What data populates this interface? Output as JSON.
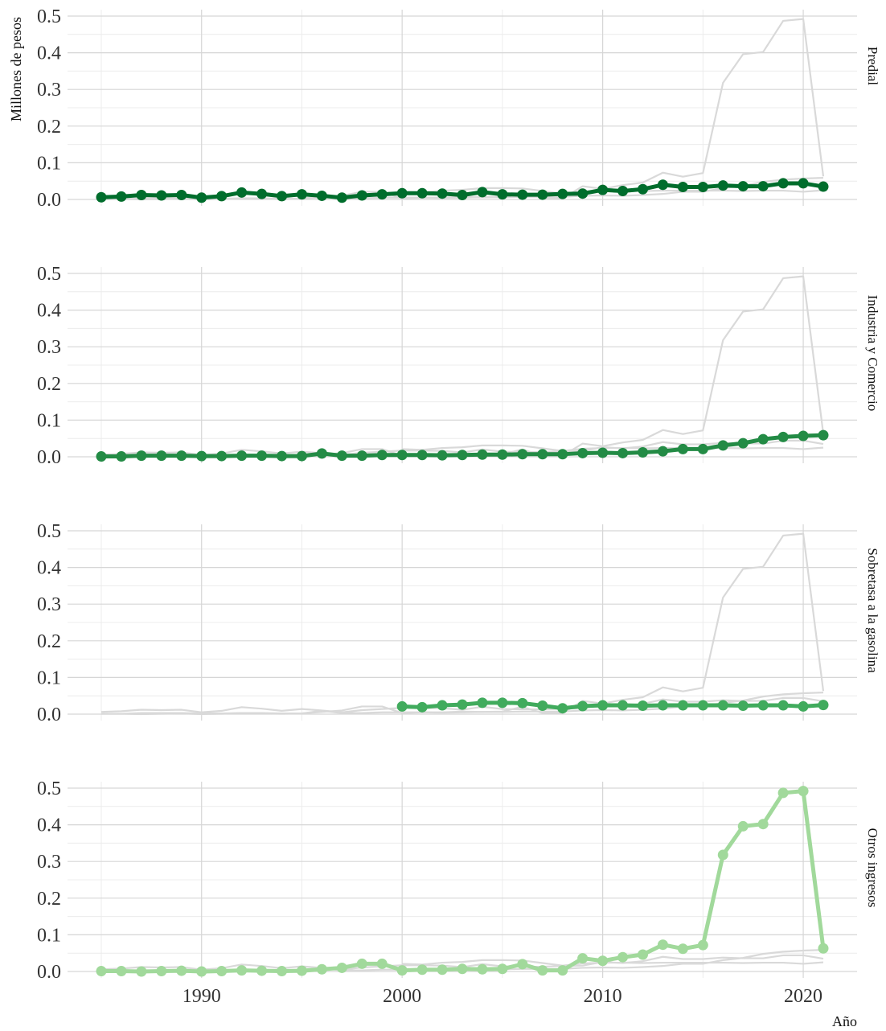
{
  "chart_data": {
    "type": "line",
    "xlabel": "Año",
    "ylabel": "Millones de pesos",
    "xlim": [
      1985,
      2021
    ],
    "ylim": [
      0,
      0.5
    ],
    "x_ticks": [
      1990,
      2000,
      2010,
      2020
    ],
    "x_tick_labels": [
      "1990",
      "2000",
      "2010",
      "2020"
    ],
    "y_ticks": [
      0,
      0.1,
      0.2,
      0.3,
      0.4,
      0.5
    ],
    "y_tick_labels": [
      "0.0",
      "0.1",
      "0.2",
      "0.3",
      "0.4",
      "0.5"
    ],
    "grid": true,
    "background_color": "#d9d9d9",
    "panels": [
      {
        "name": "Predial",
        "color": "#006d2c",
        "x": [
          1985,
          1986,
          1987,
          1988,
          1989,
          1990,
          1991,
          1992,
          1993,
          1994,
          1995,
          1996,
          1997,
          1998,
          1999,
          2000,
          2001,
          2002,
          2003,
          2004,
          2005,
          2006,
          2007,
          2008,
          2009,
          2010,
          2011,
          2012,
          2013,
          2014,
          2015,
          2016,
          2017,
          2018,
          2019,
          2020,
          2021
        ],
        "values": [
          0.006,
          0.008,
          0.012,
          0.011,
          0.012,
          0.005,
          0.009,
          0.019,
          0.015,
          0.009,
          0.014,
          0.01,
          0.005,
          0.011,
          0.014,
          0.017,
          0.017,
          0.016,
          0.012,
          0.02,
          0.014,
          0.013,
          0.013,
          0.015,
          0.016,
          0.026,
          0.023,
          0.028,
          0.04,
          0.034,
          0.034,
          0.038,
          0.036,
          0.036,
          0.044,
          0.044,
          0.035
        ]
      },
      {
        "name": "Industria y Comercio",
        "color": "#238b45",
        "x": [
          1985,
          1986,
          1987,
          1988,
          1989,
          1990,
          1991,
          1992,
          1993,
          1994,
          1995,
          1996,
          1997,
          1998,
          1999,
          2000,
          2001,
          2002,
          2003,
          2004,
          2005,
          2006,
          2007,
          2008,
          2009,
          2010,
          2011,
          2012,
          2013,
          2014,
          2015,
          2016,
          2017,
          2018,
          2019,
          2020,
          2021
        ],
        "values": [
          0.001,
          0.001,
          0.003,
          0.003,
          0.003,
          0.002,
          0.002,
          0.003,
          0.003,
          0.002,
          0.002,
          0.009,
          0.003,
          0.003,
          0.005,
          0.005,
          0.005,
          0.004,
          0.005,
          0.006,
          0.006,
          0.007,
          0.007,
          0.007,
          0.01,
          0.011,
          0.01,
          0.012,
          0.015,
          0.021,
          0.021,
          0.031,
          0.037,
          0.048,
          0.054,
          0.057,
          0.059
        ]
      },
      {
        "name": "Sobretasa a la gasolina",
        "color": "#41ab5d",
        "x": [
          2000,
          2001,
          2002,
          2003,
          2004,
          2005,
          2006,
          2007,
          2008,
          2009,
          2010,
          2011,
          2012,
          2013,
          2014,
          2015,
          2016,
          2017,
          2018,
          2019,
          2020,
          2021
        ],
        "values": [
          0.021,
          0.019,
          0.024,
          0.026,
          0.031,
          0.031,
          0.03,
          0.023,
          0.016,
          0.022,
          0.024,
          0.024,
          0.023,
          0.024,
          0.024,
          0.024,
          0.024,
          0.023,
          0.024,
          0.024,
          0.021,
          0.025
        ]
      },
      {
        "name": "Otros ingresos",
        "color": "#a1d99b",
        "x": [
          1985,
          1986,
          1987,
          1988,
          1989,
          1990,
          1991,
          1992,
          1993,
          1994,
          1995,
          1996,
          1997,
          1998,
          1999,
          2000,
          2001,
          2002,
          2003,
          2004,
          2005,
          2006,
          2007,
          2008,
          2009,
          2010,
          2011,
          2012,
          2013,
          2014,
          2015,
          2016,
          2017,
          2018,
          2019,
          2020,
          2021
        ],
        "values": [
          0.001,
          0.001,
          0.0,
          0.001,
          0.002,
          0.0,
          0.001,
          0.003,
          0.002,
          0.001,
          0.002,
          0.006,
          0.01,
          0.021,
          0.021,
          0.003,
          0.005,
          0.005,
          0.007,
          0.006,
          0.007,
          0.02,
          0.003,
          0.003,
          0.036,
          0.029,
          0.039,
          0.046,
          0.073,
          0.062,
          0.072,
          0.318,
          0.396,
          0.402,
          0.487,
          0.492,
          0.063
        ]
      }
    ]
  }
}
